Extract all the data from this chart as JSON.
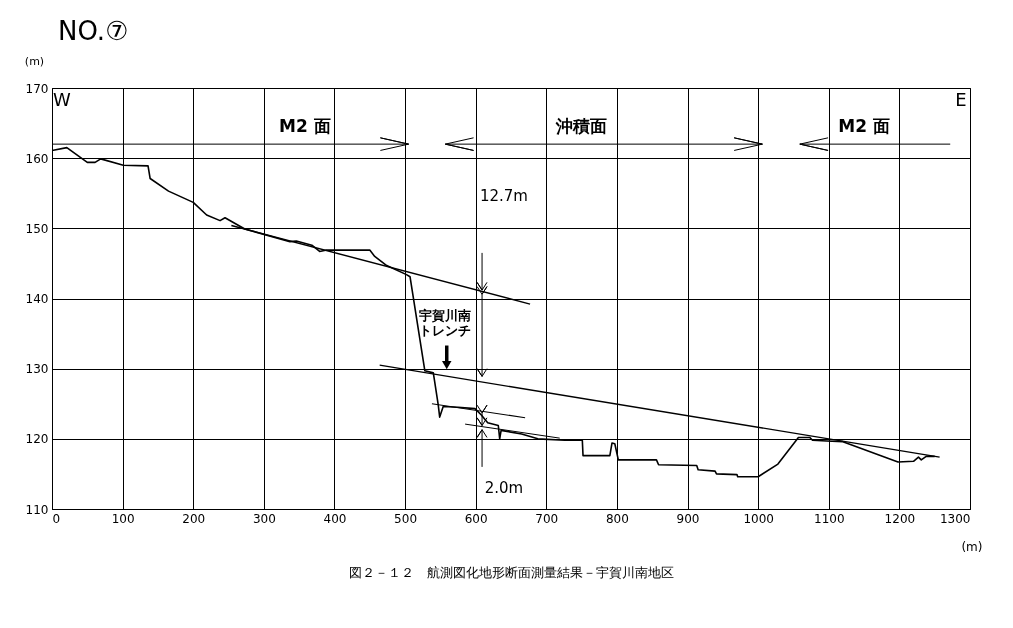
{
  "chart_data": {
    "type": "line",
    "title": "NO.⑦",
    "xlabel": "(m)",
    "ylabel": "(m)",
    "xlim": [
      0,
      1300
    ],
    "xticks": [
      0,
      100,
      200,
      300,
      400,
      500,
      600,
      700,
      800,
      900,
      1000,
      1100,
      1200,
      1300
    ],
    "ylim": [
      110,
      170
    ],
    "yticks": [
      110,
      120,
      130,
      140,
      150,
      160,
      170
    ],
    "grid": true,
    "marker": "none",
    "line_style": "solid",
    "series": [
      {
        "color": "#000000",
        "x": [
          0,
          21,
          50,
          61,
          69,
          101,
          136,
          139,
          165,
          200,
          219,
          238,
          245,
          273,
          337,
          346,
          368,
          379,
          389,
          450,
          457,
          474,
          502,
          507,
          528,
          540,
          547,
          549,
          554,
          575,
          599,
          608,
          617,
          632,
          634,
          636,
          665,
          688,
          726,
          751,
          752,
          790,
          793,
          797,
          802,
          856,
          859,
          913,
          915,
          939,
          941,
          970,
          971,
          1000,
          1028,
          1057,
          1073,
          1077,
          1097,
          1120,
          1198,
          1220,
          1227,
          1231,
          1238,
          1250
        ],
        "values": [
          161.1,
          161.5,
          159.4,
          159.4,
          159.9,
          159.0,
          158.9,
          157.1,
          155.3,
          153.7,
          151.9,
          151.1,
          151.5,
          149.9,
          148.1,
          148.2,
          147.6,
          146.7,
          146.9,
          146.9,
          146.0,
          144.7,
          143.4,
          143.1,
          129.7,
          129.4,
          124.8,
          123.1,
          124.6,
          124.5,
          124.3,
          123.4,
          122.3,
          121.9,
          120.0,
          121.2,
          120.7,
          120.0,
          119.8,
          119.8,
          117.6,
          117.6,
          119.4,
          119.3,
          117.0,
          117.0,
          116.3,
          116.2,
          115.6,
          115.4,
          115.0,
          114.9,
          114.6,
          114.6,
          116.4,
          120.2,
          120.2,
          119.8,
          119.7,
          119.6,
          116.7,
          116.8,
          117.4,
          117.0,
          117.5,
          117.5
        ]
      },
      {
        "color": "#000000",
        "x": [
          254,
          677
        ],
        "values": [
          150.4,
          139.2
        ]
      },
      {
        "color": "#000000",
        "x": [
          464,
          1257
        ],
        "values": [
          130.5,
          117.4
        ]
      },
      {
        "color": "#000000",
        "x": [
          538,
          670
        ],
        "values": [
          125.0,
          123.0
        ]
      },
      {
        "color": "#000000",
        "x": [
          585,
          719
        ],
        "values": [
          122.1,
          120.1
        ]
      }
    ],
    "annotations": [
      "W",
      "E",
      "12.7m",
      "2.0m",
      "宇賀川南トレンチ",
      "M2 面",
      "沖積面",
      "M2 面",
      "図２－１２　航測図化地形断面測量結果－宇賀川南地区"
    ]
  }
}
